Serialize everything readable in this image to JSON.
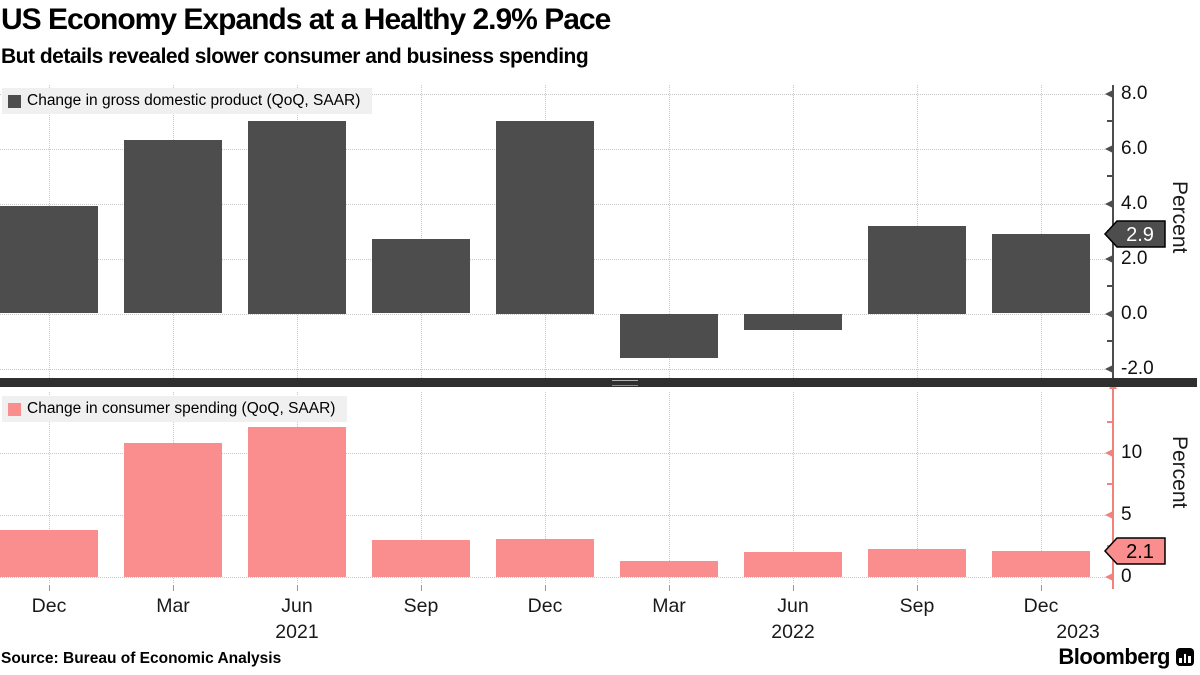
{
  "header": {
    "title": "US Economy Expands at a Healthy 2.9% Pace",
    "subtitle": "But details revealed slower consumer and business spending"
  },
  "footer": {
    "source": "Source: Bureau of Economic Analysis",
    "brand": "Bloomberg",
    "brand_icon": "bar-chart-icon"
  },
  "colors": {
    "gdp_bar": "#4d4d4d",
    "spending_bar": "#fa8d8d",
    "spending_axis": "#f2837c",
    "gdp_axis": "#4d4d4d",
    "gridline": "#c9c9c9",
    "divider": "#2f2f2f",
    "badge_dark_text": "#ffffff",
    "badge_pink_text": "#000000",
    "legend_background": "#f0f0f0"
  },
  "x_axis": {
    "tick_labels": [
      "Dec",
      "Mar",
      "Jun",
      "Sep",
      "Dec",
      "Mar",
      "Jun",
      "Sep",
      "Dec"
    ],
    "years": [
      {
        "label": "2021",
        "index": 2,
        "dx": 0
      },
      {
        "label": "2022",
        "index": 6,
        "dx": 0
      },
      {
        "label": "2023",
        "index": 8,
        "dx": 37
      }
    ]
  },
  "chart_data": [
    {
      "type": "bar",
      "legend": "Change in gross domestic product (QoQ, SAAR)",
      "categories": [
        "Dec",
        "Mar",
        "Jun",
        "Sep",
        "Dec",
        "Mar",
        "Jun",
        "Sep",
        "Dec"
      ],
      "values": [
        3.9,
        6.3,
        7.0,
        2.7,
        7.0,
        -1.6,
        -0.6,
        3.2,
        2.9
      ],
      "bar_color": "#4d4d4d",
      "axis_color": "#4d4d4d",
      "ylabel": "Percent",
      "ylim": [
        -2.42,
        8.31
      ],
      "grid": "dotted",
      "legend_position": "top-left",
      "yticks": [
        {
          "value": 8,
          "label": "8.0"
        },
        {
          "value": 6,
          "label": "6.0"
        },
        {
          "value": 4,
          "label": "4.0"
        },
        {
          "value": 2,
          "label": "2.0"
        },
        {
          "value": 0,
          "label": "0.0"
        },
        {
          "value": -2,
          "label": "-2.0"
        }
      ],
      "minor_ticks": [
        7,
        5,
        3,
        1,
        -1
      ],
      "badge": {
        "value": 2.9,
        "label": "2.9",
        "fill": "#4d4d4d",
        "text_color": "#ffffff"
      },
      "axis_arrow_up": false
    },
    {
      "type": "bar",
      "legend": "Change in consumer spending (QoQ, SAAR)",
      "categories": [
        "Dec",
        "Mar",
        "Jun",
        "Sep",
        "Dec",
        "Mar",
        "Jun",
        "Sep",
        "Dec"
      ],
      "values": [
        3.8,
        10.8,
        12.1,
        3.0,
        3.1,
        1.3,
        2.0,
        2.3,
        2.1
      ],
      "bar_color": "#fa8d8d",
      "axis_color": "#f2837c",
      "ylabel": "Percent",
      "ylim": [
        -0.48,
        14.92
      ],
      "grid": "dotted",
      "legend_position": "top-left",
      "yticks": [
        {
          "value": 10,
          "label": "10"
        },
        {
          "value": 5,
          "label": "5"
        },
        {
          "value": 0,
          "label": "0"
        }
      ],
      "minor_ticks": [
        12.5,
        7.5,
        2.5
      ],
      "badge": {
        "value": 2.1,
        "label": "2.1",
        "fill": "#fa8d8d",
        "text_color": "#000000"
      },
      "axis_arrow_up": true
    }
  ]
}
